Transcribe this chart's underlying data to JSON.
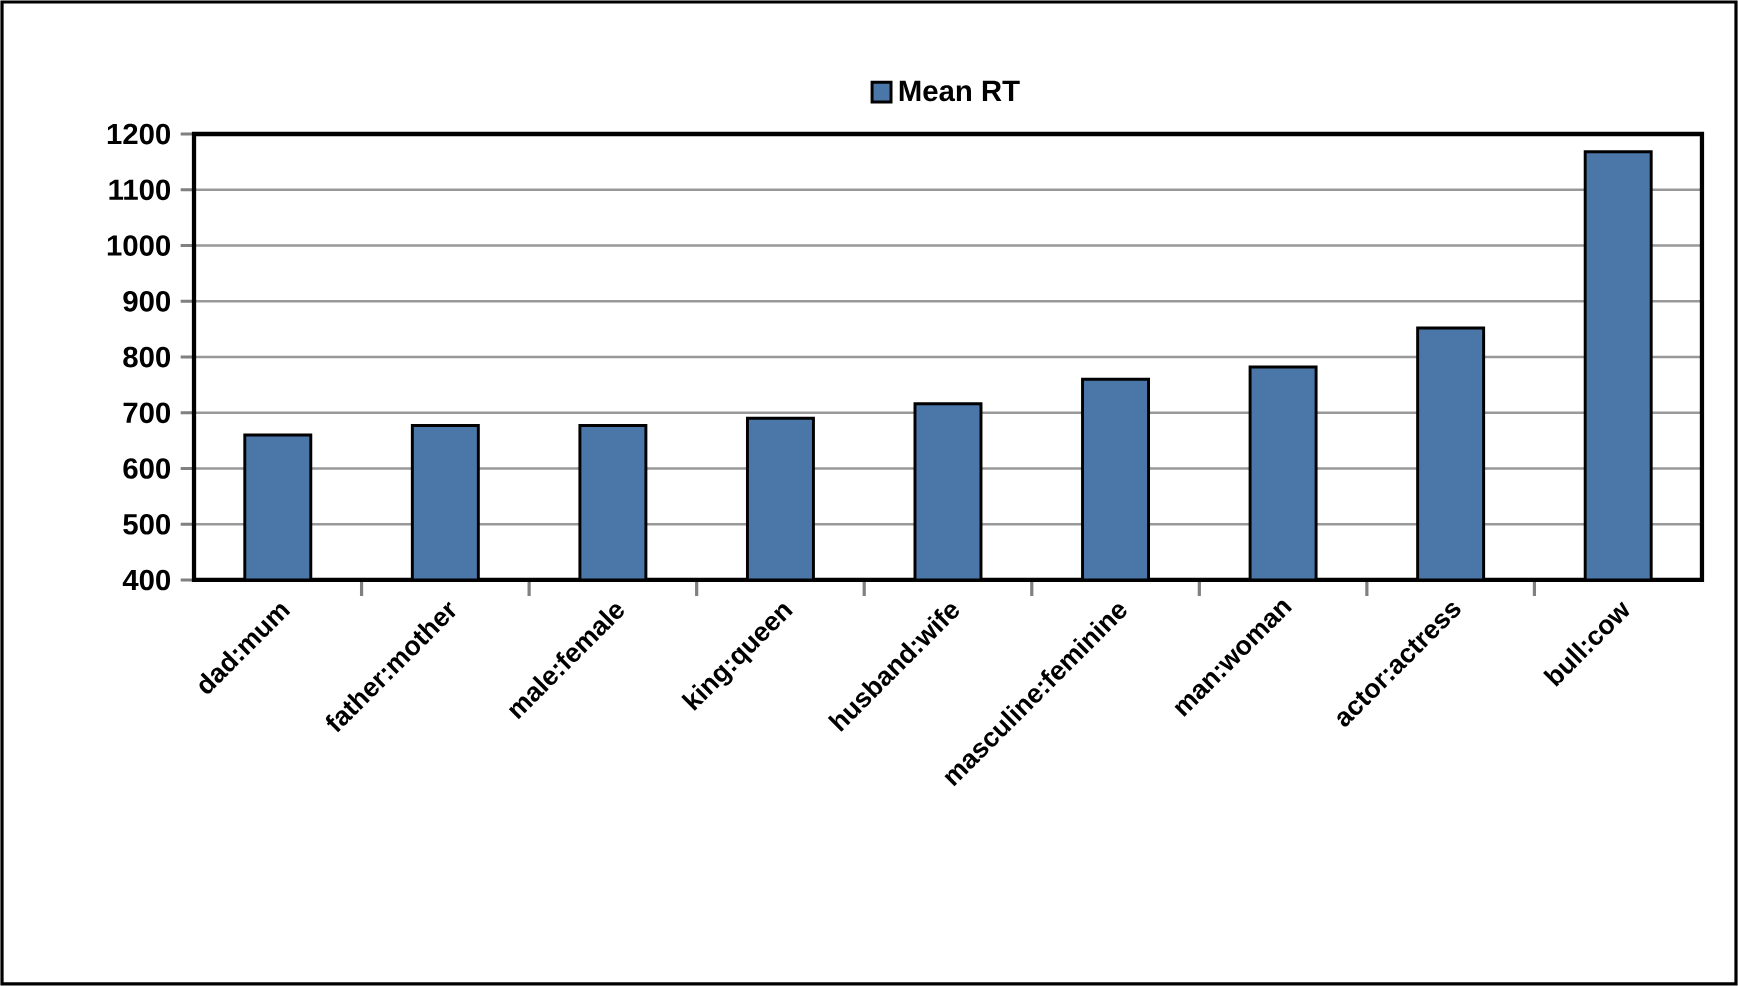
{
  "chart_data": {
    "type": "bar",
    "categories": [
      "dad:mum",
      "father:mother",
      "male:female",
      "king:queen",
      "husband:wife",
      "masculine:feminine",
      "man:woman",
      "actor:actress",
      "bull:cow"
    ],
    "series": [
      {
        "name": "Mean RT",
        "color": "#4a76a8",
        "values": [
          660,
          677,
          677,
          690,
          716,
          760,
          782,
          852,
          1168
        ]
      }
    ],
    "ylim": [
      400,
      1200
    ],
    "yticks": [
      400,
      500,
      600,
      700,
      800,
      900,
      1000,
      1100,
      1200
    ],
    "grid": "y",
    "legend": "top"
  }
}
